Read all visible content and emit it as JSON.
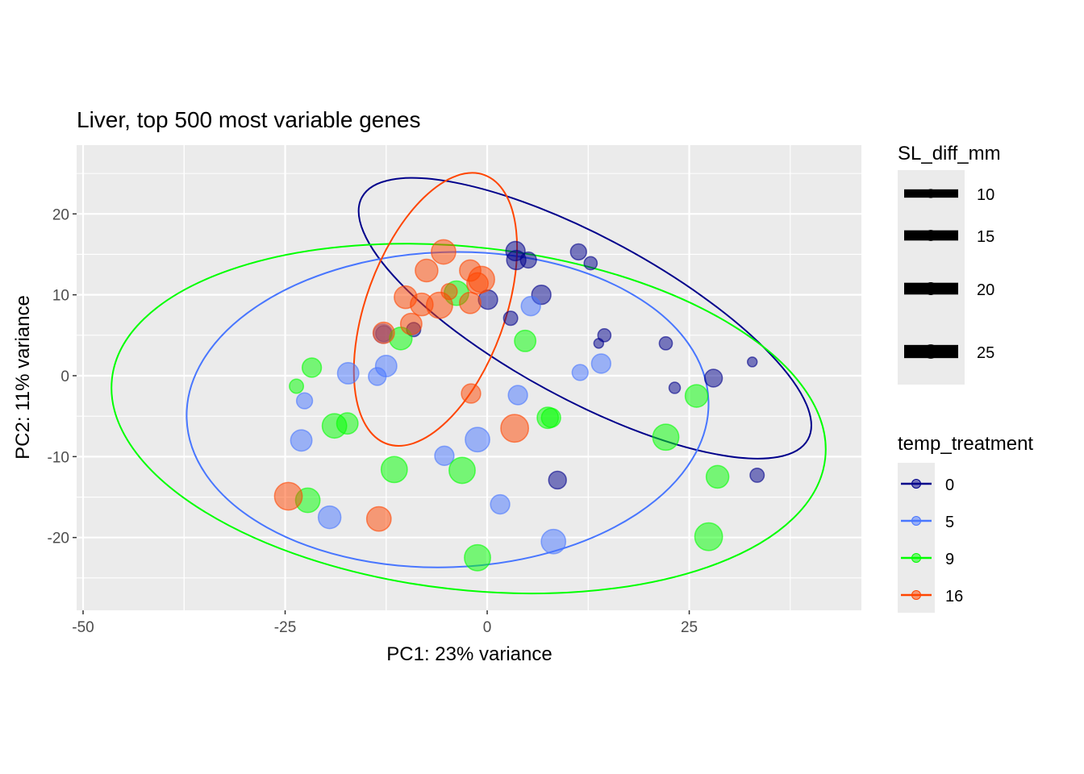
{
  "chart_data": {
    "type": "scatter",
    "title": "Liver, top 500 most variable genes",
    "xlabel": "PC1: 23% variance",
    "ylabel": "PC2: 11% variance",
    "xlim": [
      -50.8,
      46.3
    ],
    "ylim": [
      -29.0,
      28.5
    ],
    "x_ticks": [
      -50,
      -25,
      0,
      25
    ],
    "x_tick_labels": [
      "-50",
      "-25",
      "0",
      "25"
    ],
    "y_ticks": [
      -20,
      -10,
      0,
      10,
      20
    ],
    "y_tick_labels": [
      "-20",
      "-10",
      "0",
      "10",
      "20"
    ],
    "grid": true,
    "size_legend": {
      "title": "SL_diff_mm",
      "labels": [
        "10",
        "15",
        "20",
        "25"
      ],
      "values": [
        10,
        15,
        20,
        25
      ]
    },
    "color_legend": {
      "title": "temp_treatment",
      "labels": [
        "0",
        "5",
        "9",
        "16"
      ]
    },
    "series": [
      {
        "name": "0",
        "color": "#00008B",
        "points": [
          [
            3.5,
            15.4,
            13
          ],
          [
            3.6,
            14.3,
            13
          ],
          [
            5.1,
            14.3,
            9
          ],
          [
            11.3,
            15.3,
            9
          ],
          [
            12.8,
            13.9,
            6
          ],
          [
            0.1,
            9.4,
            13
          ],
          [
            6.7,
            10.0,
            13
          ],
          [
            2.9,
            7.1,
            7
          ],
          [
            14.5,
            5.0,
            6
          ],
          [
            13.8,
            4.0,
            3.3
          ],
          [
            22.1,
            4.0,
            6
          ],
          [
            28.0,
            -0.3,
            11
          ],
          [
            23.2,
            -1.5,
            4.5
          ],
          [
            32.8,
            1.7,
            3.3
          ],
          [
            33.4,
            -12.3,
            7
          ],
          [
            8.7,
            -12.9,
            11
          ],
          [
            -9.1,
            5.7,
            7
          ],
          [
            -12.8,
            5.2,
            9
          ]
        ],
        "ellipse": {
          "center": [
            12.1,
            7.1
          ],
          "semi_major": 31.4,
          "semi_minor": 10.0,
          "angle_deg": -28.5
        }
      },
      {
        "name": "5",
        "color": "#4876FF",
        "points": [
          [
            5.4,
            8.6,
            13
          ],
          [
            14.1,
            1.5,
            13
          ],
          [
            11.5,
            0.4,
            9
          ],
          [
            3.8,
            -2.4,
            13
          ],
          [
            -1.2,
            -7.9,
            21
          ],
          [
            -5.3,
            -9.9,
            13
          ],
          [
            1.6,
            -15.9,
            13
          ],
          [
            8.2,
            -20.5,
            21
          ],
          [
            -19.5,
            -17.5,
            18
          ],
          [
            -23.0,
            -8.0,
            16
          ],
          [
            -22.6,
            -3.1,
            9
          ],
          [
            -17.2,
            0.3,
            16
          ],
          [
            -12.5,
            1.2,
            16
          ],
          [
            -13.6,
            -0.1,
            11
          ],
          [
            -12.9,
            5.2,
            13
          ]
        ],
        "ellipse": {
          "center": [
            -4.9,
            -4.2
          ],
          "semi_major": 32.3,
          "semi_minor": 19.5,
          "angle_deg": 2
        }
      },
      {
        "name": "9",
        "color": "#00FF00",
        "points": [
          [
            -3.8,
            10.2,
            21
          ],
          [
            -10.7,
            4.6,
            18
          ],
          [
            4.7,
            4.3,
            16
          ],
          [
            -21.7,
            1.0,
            13
          ],
          [
            -23.6,
            -1.3,
            7
          ],
          [
            -18.9,
            -6.2,
            21
          ],
          [
            -17.3,
            -5.9,
            16
          ],
          [
            7.5,
            -5.2,
            16
          ],
          [
            7.9,
            -5.2,
            13
          ],
          [
            25.9,
            -2.5,
            18
          ],
          [
            22.1,
            -7.6,
            24
          ],
          [
            28.5,
            -12.5,
            18
          ],
          [
            27.4,
            -19.9,
            27
          ],
          [
            -3.1,
            -11.7,
            24
          ],
          [
            -11.5,
            -11.6,
            24
          ],
          [
            -22.2,
            -15.4,
            21
          ],
          [
            -1.2,
            -22.5,
            24
          ]
        ],
        "ellipse": {
          "center": [
            -2.3,
            -5.3
          ],
          "semi_major": 44.4,
          "semi_minor": 21.2,
          "angle_deg": -6.4
        }
      },
      {
        "name": "16",
        "color": "#FF4500",
        "points": [
          [
            -5.4,
            15.3,
            21
          ],
          [
            -7.5,
            13.0,
            18
          ],
          [
            -2.1,
            13.0,
            16
          ],
          [
            -0.7,
            11.9,
            24
          ],
          [
            -1.2,
            11.4,
            16
          ],
          [
            -4.7,
            10.4,
            9
          ],
          [
            -10.1,
            9.7,
            18
          ],
          [
            -8.1,
            8.8,
            18
          ],
          [
            -5.9,
            8.7,
            24
          ],
          [
            -2.1,
            9.0,
            16
          ],
          [
            -9.4,
            6.4,
            16
          ],
          [
            -12.8,
            5.3,
            16
          ],
          [
            -2.0,
            -2.2,
            13
          ],
          [
            3.4,
            -6.5,
            27
          ],
          [
            -24.6,
            -14.9,
            27
          ],
          [
            -13.4,
            -17.7,
            21
          ]
        ],
        "ellipse": {
          "center": [
            -6.4,
            8.2
          ],
          "semi_major": 17.7,
          "semi_minor": 8.6,
          "angle_deg": 70
        }
      }
    ]
  }
}
